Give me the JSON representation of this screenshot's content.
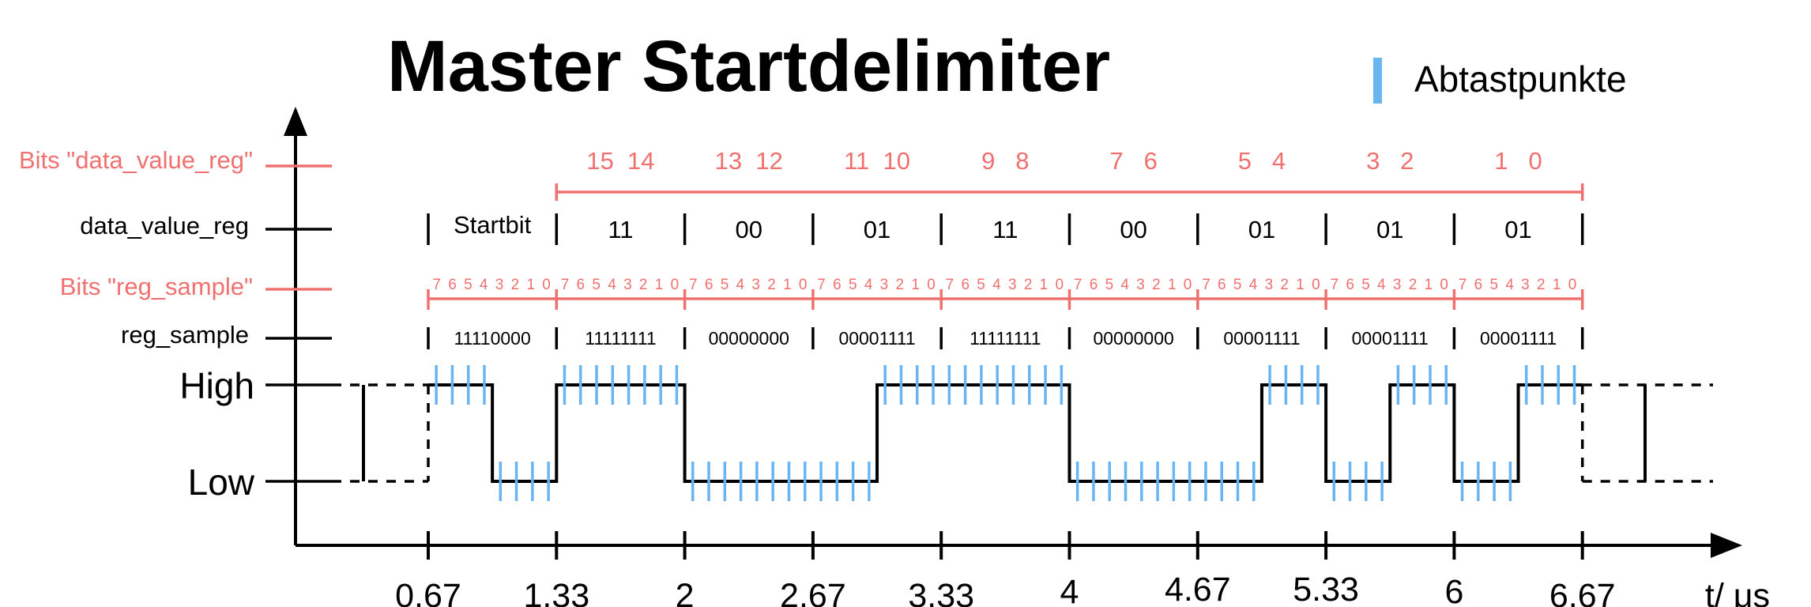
{
  "title": "Master Startdelimiter",
  "legend": {
    "label": "Abtastpunkte",
    "color": "#6ab4f0"
  },
  "labels": {
    "bits_data_value_reg": "Bits \"data_value_reg\"",
    "data_value_reg": "data_value_reg",
    "bits_reg_sample": "Bits \"reg_sample\"",
    "reg_sample": "reg_sample",
    "high": "High",
    "low": "Low",
    "time_axis": "t/ μs"
  },
  "colors": {
    "red": "#f07070",
    "blue": "#6ab4f0",
    "black": "#000000"
  },
  "time_ticks": [
    "0.67",
    "1.33",
    "2",
    "2.67",
    "3.33",
    "4",
    "4.67",
    "5.33",
    "6",
    "6.67"
  ],
  "data_value_bit_pairs": [
    "15  14",
    "13  12",
    "11  10",
    "9   8",
    "7   6",
    "5   4",
    "3   2",
    "1   0"
  ],
  "data_value_reg_values": [
    "Startbit",
    "11",
    "00",
    "01",
    "11",
    "00",
    "01",
    "01",
    "01"
  ],
  "reg_sample_bit_indices": "7 6 5 4 3 2 1 0",
  "reg_sample_values": [
    "11110000",
    "11111111",
    "00000000",
    "00001111",
    "11111111",
    "00000000",
    "00001111",
    "00001111",
    "00001111"
  ],
  "signal_levels": [
    1,
    0,
    1,
    1,
    0,
    0,
    0,
    1,
    1,
    1,
    0,
    0,
    0,
    1,
    0,
    1,
    0,
    1
  ],
  "samples_per_half_segment": 4
}
